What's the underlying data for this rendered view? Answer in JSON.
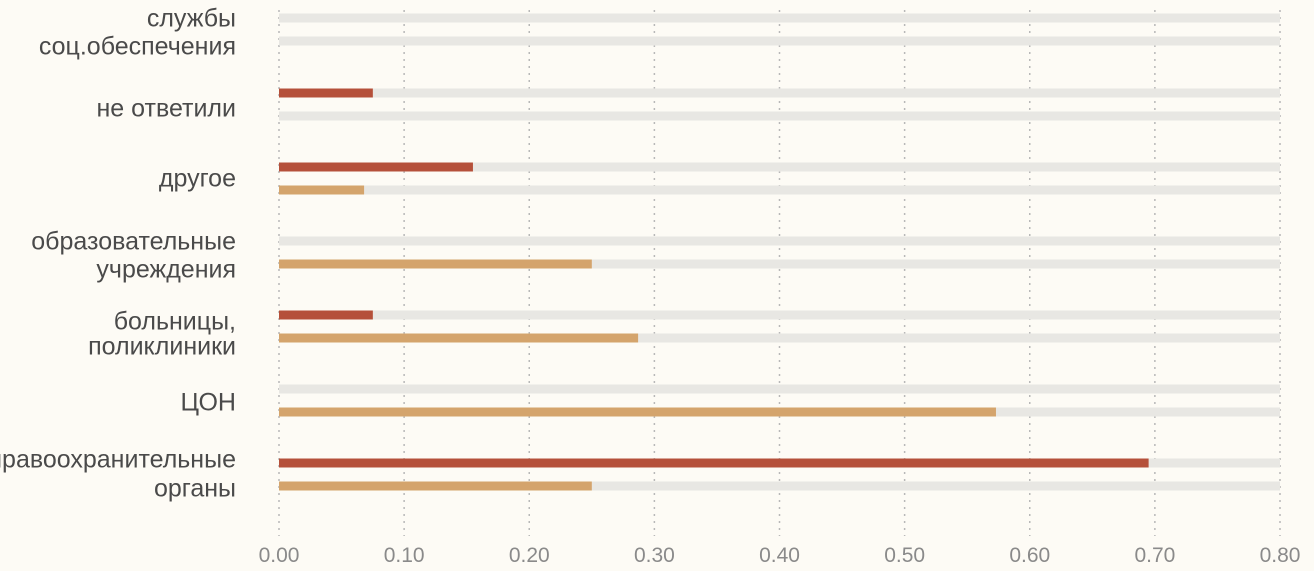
{
  "chart_data": {
    "type": "bar",
    "orientation": "horizontal",
    "title": "",
    "xlabel": "",
    "ylabel": "",
    "xlim": [
      0,
      0.8
    ],
    "x_ticks": [
      "0.00",
      "0.10",
      "0.20",
      "0.30",
      "0.40",
      "0.50",
      "0.60",
      "0.70",
      "0.80"
    ],
    "grid": "vertical dotted",
    "legend": "none",
    "categories": [
      [
        "службы",
        "соц.обеспечения"
      ],
      [
        "не ответили"
      ],
      [
        "другое"
      ],
      [
        "образовательные",
        "учреждения"
      ],
      [
        "больницы,",
        "поликлиники"
      ],
      [
        "ЦОН"
      ],
      [
        "правоохранительные",
        "органы"
      ]
    ],
    "series": [
      {
        "color": "#b5503a",
        "values": [
          0,
          0.075,
          0.155,
          0,
          0.075,
          0,
          0.695
        ]
      },
      {
        "color": "#d4a46c",
        "values": [
          0,
          0,
          0.068,
          0.25,
          0.287,
          0.573,
          0.25
        ]
      }
    ],
    "track_color": "#e8e7e3"
  }
}
